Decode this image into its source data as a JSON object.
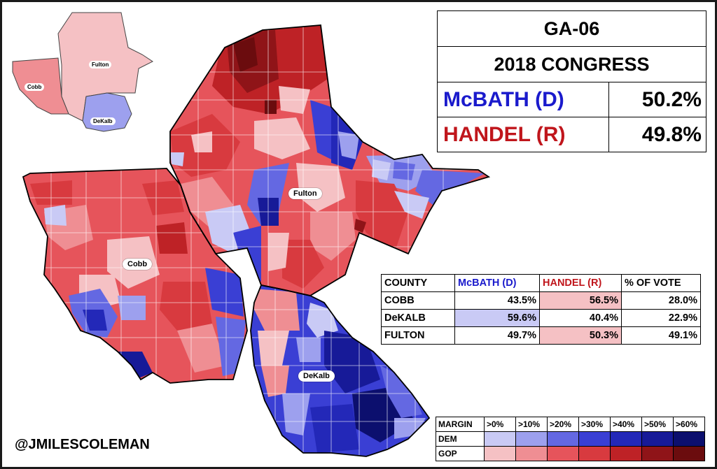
{
  "results": {
    "title": "GA-06",
    "subtitle": "2018 CONGRESS",
    "candidates": [
      {
        "name": "McBATH (D)",
        "pct": "50.2%",
        "color": "#1a1acc"
      },
      {
        "name": "HANDEL (R)",
        "pct": "49.8%",
        "color": "#c0161c"
      }
    ]
  },
  "map": {
    "county_labels": [
      "Fulton",
      "Cobb",
      "DeKalb"
    ],
    "inset_labels": [
      "Fulton",
      "Cobb",
      "DeKalb"
    ]
  },
  "county_table": {
    "headers": [
      "COUNTY",
      "McBATH (D)",
      "HANDEL (R)",
      "% OF VOTE"
    ],
    "rows": [
      {
        "county": "COBB",
        "dem": "43.5%",
        "rep": "56.5%",
        "share": "28.0%",
        "winner": "rep"
      },
      {
        "county": "DeKALB",
        "dem": "59.6%",
        "rep": "40.4%",
        "share": "22.9%",
        "winner": "dem"
      },
      {
        "county": "FULTON",
        "dem": "49.7%",
        "rep": "50.3%",
        "share": "49.1%",
        "winner": "rep"
      }
    ]
  },
  "legend": {
    "header": "MARGIN",
    "bins": [
      ">0%",
      ">10%",
      ">20%",
      ">30%",
      ">40%",
      ">50%",
      ">60%"
    ],
    "dem_label": "DEM",
    "gop_label": "GOP",
    "dem_colors": [
      "#c9caf5",
      "#9da0ee",
      "#6468e2",
      "#3a3fd4",
      "#2328b8",
      "#171a98",
      "#0c0f6e"
    ],
    "gop_colors": [
      "#f5c1c4",
      "#ef8e93",
      "#e6545b",
      "#d83a3f",
      "#be2226",
      "#8f1418",
      "#6b0c0e"
    ]
  },
  "credit": "@JMILESCOLEMAN"
}
